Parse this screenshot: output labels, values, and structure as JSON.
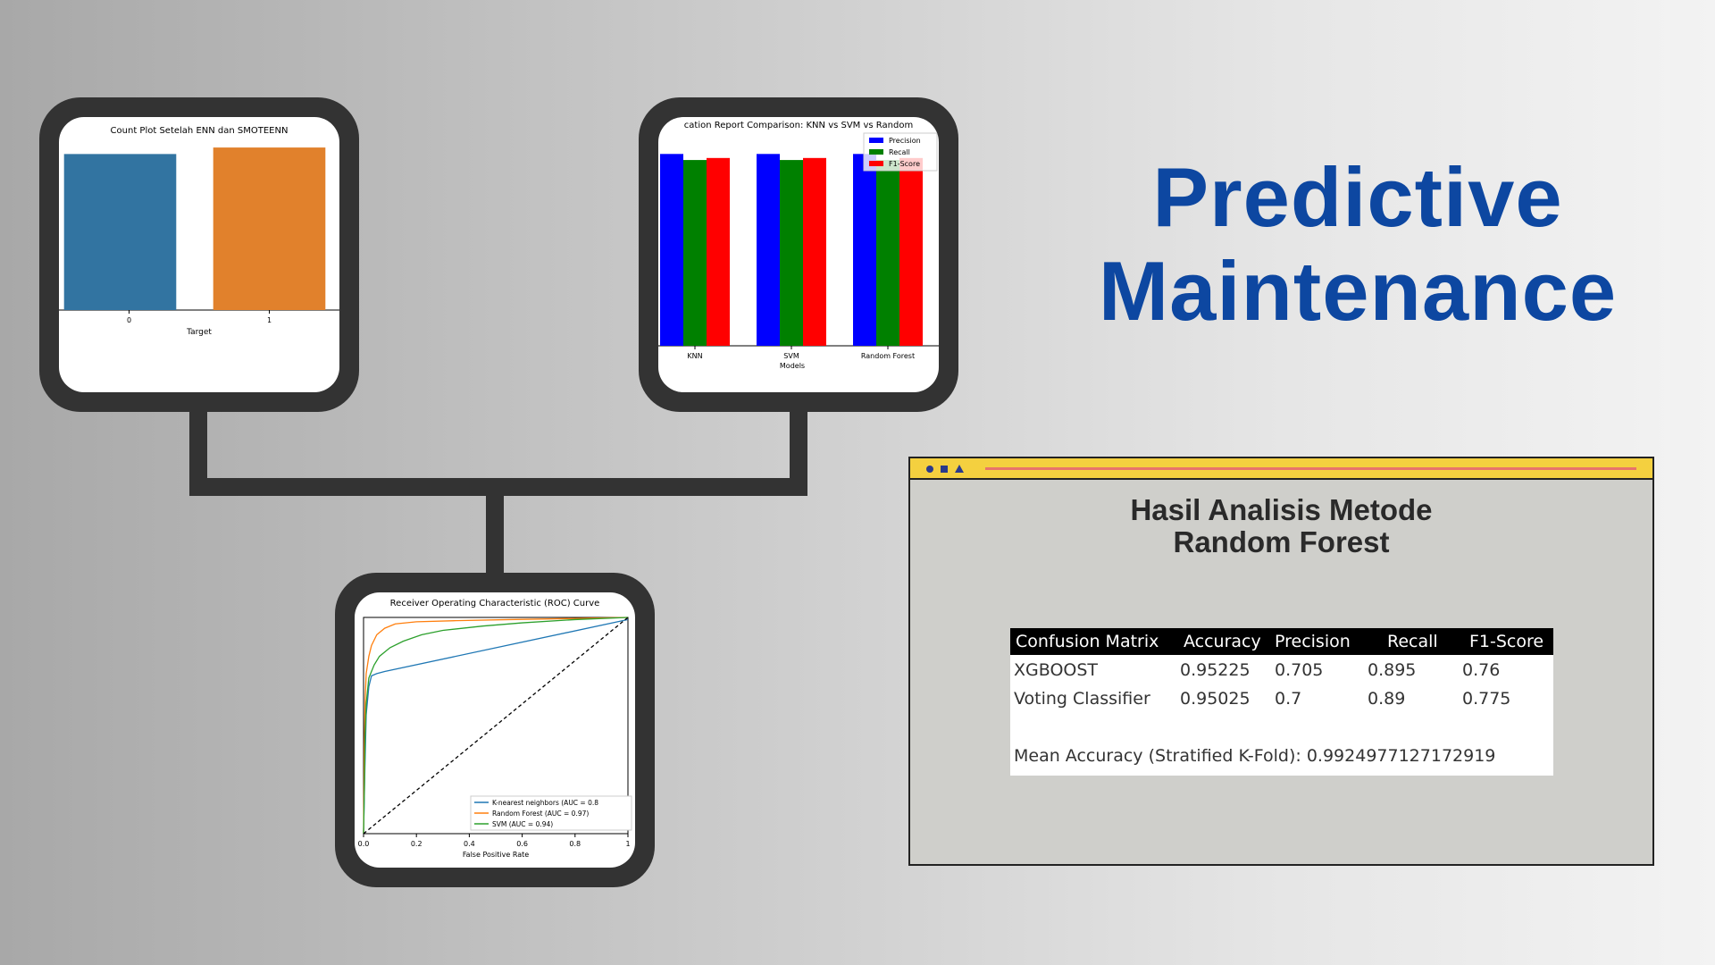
{
  "title": {
    "line1": "Predictive",
    "line2": "Maintenance"
  },
  "colors": {
    "title": "#0d47a1",
    "frame": "#333333",
    "window_bar": "#f4d03f",
    "window_bg": "#cfcfcb"
  },
  "window": {
    "bar_icons": [
      "circle-icon",
      "square-icon",
      "triangle-icon"
    ],
    "title_line1": "Hasil Analisis Metode",
    "title_line2": "Random Forest",
    "table": {
      "headers": [
        "Confusion Matrix",
        "Accuracy",
        "Precision",
        "Recall",
        "F1-Score"
      ],
      "rows": [
        [
          "XGBOOST",
          "0.95225",
          "0.705",
          "0.895",
          "0.76"
        ],
        [
          "Voting Classifier",
          "0.95025",
          "0.7",
          "0.89",
          "0.775"
        ]
      ],
      "footer": "Mean Accuracy (Stratified K-Fold): 0.9924977127172919"
    }
  },
  "chart_data": [
    {
      "type": "bar",
      "title": "Count Plot Setelah ENN dan SMOTEENN",
      "xlabel": "Target",
      "ylabel": "",
      "categories": [
        "0",
        "1"
      ],
      "values": [
        0.96,
        1.0
      ],
      "colors": [
        "#3274a1",
        "#e1812c"
      ],
      "ylim": [
        0,
        1.05
      ]
    },
    {
      "type": "bar",
      "title": "cation Report Comparison: KNN vs SVM vs Random",
      "xlabel": "Models",
      "ylabel": "",
      "categories": [
        "KNN",
        "SVM",
        "Random Forest"
      ],
      "series": [
        {
          "name": "Precision",
          "color": "#0000ff",
          "values": [
            0.95,
            0.95,
            0.95
          ]
        },
        {
          "name": "Recall",
          "color": "#008000",
          "values": [
            0.92,
            0.92,
            0.92
          ]
        },
        {
          "name": "F1-Score",
          "color": "#ff0000",
          "values": [
            0.93,
            0.93,
            0.93
          ]
        }
      ],
      "ylim": [
        0,
        1.0
      ],
      "legend": "top-right"
    },
    {
      "type": "line",
      "title": "Receiver Operating Characteristic (ROC) Curve",
      "xlabel": "False Positive Rate",
      "ylabel": "",
      "xticks": [
        "0.0",
        "0.2",
        "0.4",
        "0.6",
        "0.8",
        "1"
      ],
      "xlim": [
        0,
        1
      ],
      "ylim": [
        0,
        1
      ],
      "series": [
        {
          "name": "K-nearest neighbors (AUC = 0.8",
          "color": "#1f77b4",
          "x": [
            0,
            0.005,
            0.01,
            0.02,
            0.03,
            0.05,
            0.08,
            1.0
          ],
          "y": [
            0,
            0.3,
            0.55,
            0.68,
            0.73,
            0.74,
            0.75,
            0.99
          ]
        },
        {
          "name": "Random Forest (AUC = 0.97)",
          "color": "#ff7f0e",
          "x": [
            0,
            0.003,
            0.006,
            0.01,
            0.02,
            0.03,
            0.05,
            0.08,
            0.12,
            0.2,
            0.35,
            0.55,
            0.8,
            1.0
          ],
          "y": [
            0,
            0.4,
            0.62,
            0.74,
            0.82,
            0.87,
            0.92,
            0.95,
            0.97,
            0.98,
            0.985,
            0.99,
            0.995,
            1.0
          ]
        },
        {
          "name": "SVM (AUC = 0.94)",
          "color": "#2ca02c",
          "x": [
            0,
            0.003,
            0.006,
            0.01,
            0.02,
            0.04,
            0.06,
            0.1,
            0.15,
            0.22,
            0.3,
            0.45,
            0.6,
            0.8,
            1.0
          ],
          "y": [
            0,
            0.2,
            0.45,
            0.6,
            0.72,
            0.78,
            0.82,
            0.86,
            0.89,
            0.92,
            0.94,
            0.96,
            0.975,
            0.99,
            1.0
          ]
        },
        {
          "name": "",
          "color": "#000000",
          "dashed": true,
          "x": [
            0,
            1
          ],
          "y": [
            0,
            1
          ]
        }
      ],
      "legend": "bottom-right"
    }
  ]
}
